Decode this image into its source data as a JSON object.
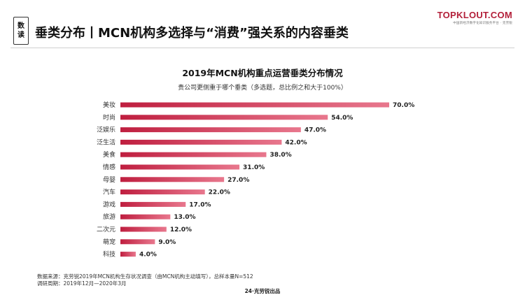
{
  "badge": {
    "chars": [
      "数",
      "读"
    ]
  },
  "headline": "垂类分布丨MCN机构多选择与“消费”强关系的内容垂类",
  "brand": {
    "name": "TOPKLOUT.COM",
    "sub": "中国新经济数字化知识服务平台 · 克劳锐"
  },
  "chart_data": {
    "type": "bar",
    "orientation": "horizontal",
    "title": "2019年MCN机构重点运营垂类分布情况",
    "subtitle": "贵公司更侧重于哪个垂类（多选题，总比例之和大于100%）",
    "categories": [
      "美妆",
      "时尚",
      "泛娱乐",
      "泛生活",
      "美食",
      "情感",
      "母婴",
      "汽车",
      "游戏",
      "旅游",
      "二次元",
      "萌宠",
      "科技"
    ],
    "values": [
      70.0,
      54.0,
      47.0,
      42.0,
      38.0,
      31.0,
      27.0,
      22.0,
      17.0,
      13.0,
      12.0,
      9.0,
      4.0
    ],
    "value_labels": [
      "70.0%",
      "54.0%",
      "47.0%",
      "42.0%",
      "38.0%",
      "31.0%",
      "27.0%",
      "22.0%",
      "17.0%",
      "13.0%",
      "12.0%",
      "9.0%",
      "4.0%"
    ],
    "xlim": [
      0,
      70
    ],
    "grid": false,
    "legend": "none",
    "colors": {
      "bar_dark": "#bf1e3f",
      "bar_light": "#e8778d"
    }
  },
  "footer": {
    "source": "数据来源：克劳锐2019年MCN机构生存状况调查（由MCN机构主动填写），总样本量N=512",
    "period": "调研周期：2019年12月—2020年3月"
  },
  "page_label": "24·克劳锐出品"
}
